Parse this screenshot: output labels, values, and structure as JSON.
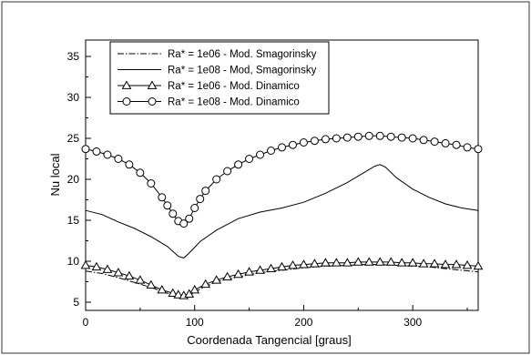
{
  "chart_data": {
    "type": "line",
    "title": "",
    "xlabel": "Coordenada Tangencial [graus]",
    "ylabel": "Nu local",
    "xlim": [
      0,
      360
    ],
    "ylim": [
      4,
      37
    ],
    "xticks": [
      0,
      100,
      200,
      300
    ],
    "yticks": [
      5,
      10,
      15,
      20,
      25,
      30,
      35
    ],
    "grid": false,
    "legend_position": "top-left",
    "series": [
      {
        "name": "Ra* = 1e06 - Mod. Smagorinsky",
        "style": "dash-dot",
        "marker": "none",
        "x": [
          0,
          15,
          30,
          45,
          60,
          75,
          85,
          90,
          95,
          105,
          120,
          140,
          160,
          180,
          200,
          220,
          240,
          255,
          270,
          285,
          300,
          315,
          330,
          345,
          360
        ],
        "y": [
          8.8,
          8.5,
          8.0,
          7.4,
          6.8,
          6.1,
          5.6,
          5.55,
          5.8,
          6.6,
          7.5,
          8.1,
          8.6,
          8.9,
          9.2,
          9.4,
          9.5,
          9.6,
          9.6,
          9.5,
          9.4,
          9.3,
          9.1,
          8.9,
          8.7
        ]
      },
      {
        "name": "Ra* = 1e08 - Mod, Smagorinsky",
        "style": "solid",
        "marker": "none",
        "x": [
          0,
          15,
          30,
          45,
          60,
          75,
          85,
          90,
          95,
          105,
          120,
          140,
          160,
          180,
          200,
          220,
          240,
          255,
          265,
          270,
          275,
          285,
          300,
          315,
          330,
          345,
          360
        ],
        "y": [
          16.2,
          15.7,
          14.8,
          14.0,
          13.0,
          11.8,
          10.6,
          10.4,
          11.0,
          12.4,
          13.8,
          15.2,
          16.0,
          16.5,
          17.2,
          18.3,
          19.6,
          20.8,
          21.6,
          21.8,
          21.5,
          20.2,
          18.8,
          17.8,
          17.0,
          16.5,
          16.2
        ]
      },
      {
        "name": "Ra* = 1e06 - Mod. Dinamico",
        "style": "solid",
        "marker": "triangle",
        "x": [
          0,
          10,
          20,
          30,
          40,
          50,
          60,
          70,
          80,
          85,
          90,
          95,
          100,
          110,
          120,
          130,
          140,
          150,
          160,
          170,
          180,
          190,
          200,
          210,
          220,
          230,
          240,
          250,
          260,
          270,
          280,
          290,
          300,
          310,
          320,
          330,
          340,
          350,
          360
        ],
        "y": [
          9.5,
          9.3,
          9.0,
          8.6,
          8.2,
          7.7,
          7.1,
          6.5,
          6.1,
          5.9,
          5.8,
          6.0,
          6.5,
          7.2,
          7.7,
          8.1,
          8.4,
          8.7,
          8.9,
          9.1,
          9.3,
          9.5,
          9.6,
          9.7,
          9.8,
          9.8,
          9.8,
          9.9,
          9.9,
          9.9,
          9.9,
          9.8,
          9.8,
          9.7,
          9.7,
          9.6,
          9.6,
          9.5,
          9.4
        ]
      },
      {
        "name": "Ra* = 1e08 - Mod. Dinamico",
        "style": "solid",
        "marker": "circle",
        "x": [
          0,
          10,
          20,
          30,
          40,
          50,
          60,
          70,
          75,
          80,
          85,
          90,
          95,
          100,
          105,
          110,
          120,
          130,
          140,
          150,
          160,
          170,
          180,
          190,
          200,
          210,
          220,
          230,
          240,
          250,
          260,
          270,
          280,
          290,
          300,
          310,
          320,
          330,
          340,
          350,
          360
        ],
        "y": [
          23.7,
          23.4,
          23.0,
          22.5,
          21.8,
          20.8,
          19.5,
          17.8,
          16.8,
          15.8,
          14.9,
          14.6,
          15.2,
          16.5,
          17.6,
          18.6,
          20.0,
          21.0,
          21.8,
          22.5,
          23.0,
          23.5,
          23.9,
          24.2,
          24.5,
          24.7,
          24.9,
          25.0,
          25.1,
          25.2,
          25.3,
          25.3,
          25.2,
          25.1,
          25.0,
          24.8,
          24.6,
          24.4,
          24.2,
          23.9,
          23.7
        ]
      }
    ]
  }
}
